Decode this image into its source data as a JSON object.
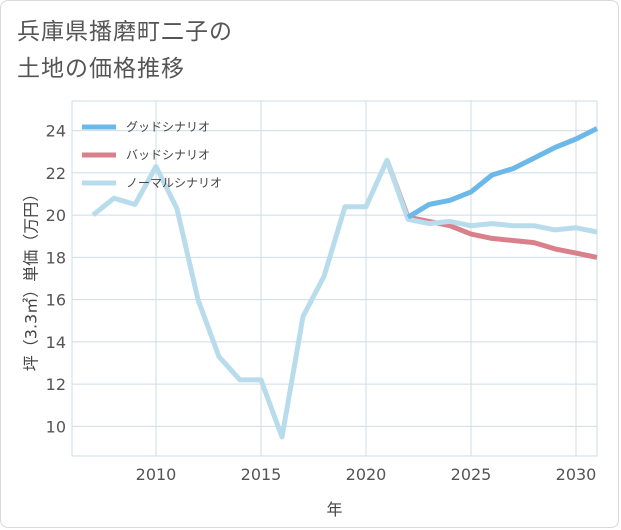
{
  "title": {
    "line1": "兵庫県播磨町二子の",
    "line2": "土地の価格推移"
  },
  "colors": {
    "good": "#6cb8e8",
    "bad": "#d9818b",
    "normal": "#b8dcec",
    "grid": "#cfdce6",
    "frame": "#d9d9d9",
    "text": "#555555"
  },
  "chart_data": {
    "type": "line",
    "title": "兵庫県播磨町二子の土地の価格推移",
    "xlabel": "年",
    "ylabel": "坪（3.3㎡）単価（万円）",
    "xlim": [
      2006,
      2031
    ],
    "ylim": [
      8.6,
      25.4
    ],
    "xticks": [
      2010,
      2015,
      2020,
      2025,
      2030
    ],
    "yticks": [
      10,
      12,
      14,
      16,
      18,
      20,
      22,
      24
    ],
    "grid": true,
    "legend_position": "top-left",
    "series": [
      {
        "name": "グッドシナリオ",
        "color": "#6cb8e8",
        "x": [
          2022,
          2023,
          2024,
          2025,
          2026,
          2027,
          2028,
          2029,
          2030,
          2031
        ],
        "y": [
          19.9,
          20.5,
          20.7,
          21.1,
          21.9,
          22.2,
          22.7,
          23.2,
          23.6,
          24.1
        ]
      },
      {
        "name": "バッドシナリオ",
        "color": "#d9818b",
        "x": [
          2021,
          2022,
          2023,
          2024,
          2025,
          2026,
          2027,
          2028,
          2029,
          2030,
          2031
        ],
        "y": [
          22.6,
          19.9,
          19.7,
          19.5,
          19.1,
          18.9,
          18.8,
          18.7,
          18.4,
          18.2,
          18.0
        ]
      },
      {
        "name": "ノーマルシナリオ",
        "color": "#b8dcec",
        "x": [
          2007,
          2008,
          2009,
          2010,
          2011,
          2012,
          2013,
          2014,
          2015,
          2016,
          2017,
          2018,
          2019,
          2020,
          2021,
          2022,
          2023,
          2024,
          2025,
          2026,
          2027,
          2028,
          2029,
          2030,
          2031
        ],
        "y": [
          20.0,
          20.8,
          20.5,
          22.3,
          20.3,
          16.0,
          13.3,
          12.2,
          12.2,
          9.5,
          15.2,
          17.1,
          20.4,
          20.4,
          22.6,
          19.8,
          19.6,
          19.7,
          19.5,
          19.6,
          19.5,
          19.5,
          19.3,
          19.4,
          19.2
        ]
      }
    ]
  }
}
